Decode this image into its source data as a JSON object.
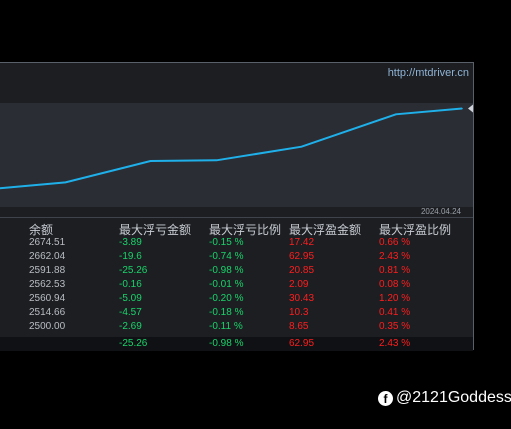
{
  "header": {
    "url": "http://mtdriver.cn"
  },
  "chart_data": {
    "type": "line",
    "date_label": "2024.04.24",
    "color": "#1fb0ea",
    "values": [
      2500.0,
      2514.66,
      2560.94,
      2562.53,
      2591.88,
      2662.04,
      2674.51
    ]
  },
  "table": {
    "headers": [
      "余额",
      "最大浮亏金额",
      "最大浮亏比例",
      "最大浮盈金额",
      "最大浮盈比例"
    ],
    "rows": [
      [
        "2674.51",
        "-3.89",
        "-0.15 %",
        "17.42",
        "0.66 %"
      ],
      [
        "2662.04",
        "-19.6",
        "-0.74 %",
        "62.95",
        "2.43 %"
      ],
      [
        "2591.88",
        "-25.26",
        "-0.98 %",
        "20.85",
        "0.81 %"
      ],
      [
        "2562.53",
        "-0.16",
        "-0.01 %",
        "2.09",
        "0.08 %"
      ],
      [
        "2560.94",
        "-5.09",
        "-0.20 %",
        "30.43",
        "1.20 %"
      ],
      [
        "2514.66",
        "-4.57",
        "-0.18 %",
        "10.3",
        "0.41 %"
      ],
      [
        "2500.00",
        "-2.69",
        "-0.11 %",
        "8.65",
        "0.35 %"
      ]
    ],
    "total": [
      "",
      "-25.26",
      "-0.98 %",
      "62.95",
      "2.43 %"
    ]
  },
  "colors": {
    "loss": "#19d46a",
    "profit": "#ff1e1e",
    "balance": "#b9bdc3"
  },
  "watermark": {
    "icon": "facebook-icon",
    "text": "@2121Goddess"
  }
}
